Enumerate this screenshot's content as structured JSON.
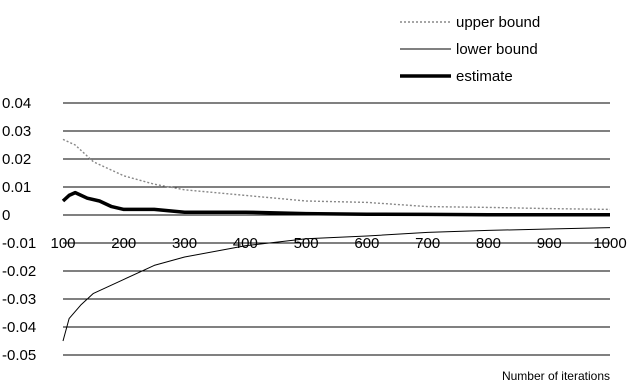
{
  "chart_data": {
    "type": "line",
    "title": "",
    "xlabel": "Number of iterations",
    "ylabel": "",
    "xlim": [
      100,
      1000
    ],
    "ylim": [
      -0.05,
      0.04
    ],
    "x_ticks": [
      100,
      200,
      300,
      400,
      500,
      600,
      700,
      800,
      900,
      1000
    ],
    "y_ticks": [
      0.04,
      0.03,
      0.02,
      0.01,
      0,
      -0.01,
      -0.02,
      -0.03,
      -0.04,
      -0.05
    ],
    "x_tick_labels": [
      "100",
      "200",
      "300",
      "400",
      "500",
      "600",
      "700",
      "800",
      "900",
      "1000"
    ],
    "y_tick_labels": [
      "0.04",
      "0.03",
      "0.02",
      "0.01",
      "0",
      "-0.01",
      "-0.02",
      "-0.03",
      "-0.04",
      "-0.05"
    ],
    "grid": "horizontal",
    "legend_position": "top-right",
    "colors": {
      "upper": "#888888",
      "lower": "#000000",
      "estimate": "#000000"
    },
    "series": [
      {
        "name": "upper bound",
        "style": "dotted",
        "x": [
          100,
          120,
          150,
          200,
          250,
          300,
          400,
          500,
          600,
          700,
          800,
          900,
          1000
        ],
        "values": [
          0.027,
          0.025,
          0.019,
          0.014,
          0.011,
          0.009,
          0.007,
          0.005,
          0.0045,
          0.003,
          0.0027,
          0.0023,
          0.002
        ]
      },
      {
        "name": "lower bound",
        "style": "thin",
        "x": [
          100,
          110,
          130,
          150,
          200,
          250,
          300,
          400,
          500,
          600,
          700,
          800,
          900,
          1000
        ],
        "values": [
          -0.045,
          -0.037,
          -0.032,
          -0.028,
          -0.023,
          -0.018,
          -0.015,
          -0.011,
          -0.0085,
          -0.0075,
          -0.0062,
          -0.0055,
          -0.005,
          -0.0045
        ]
      },
      {
        "name": "estimate",
        "style": "thick",
        "x": [
          100,
          110,
          120,
          140,
          160,
          180,
          200,
          250,
          300,
          400,
          500,
          600,
          700,
          800,
          900,
          1000
        ],
        "values": [
          0.005,
          0.007,
          0.008,
          0.006,
          0.005,
          0.003,
          0.002,
          0.002,
          0.001,
          0.001,
          0.0005,
          0.0003,
          0.0002,
          0.0001,
          0.0001,
          0.0001
        ]
      }
    ]
  }
}
